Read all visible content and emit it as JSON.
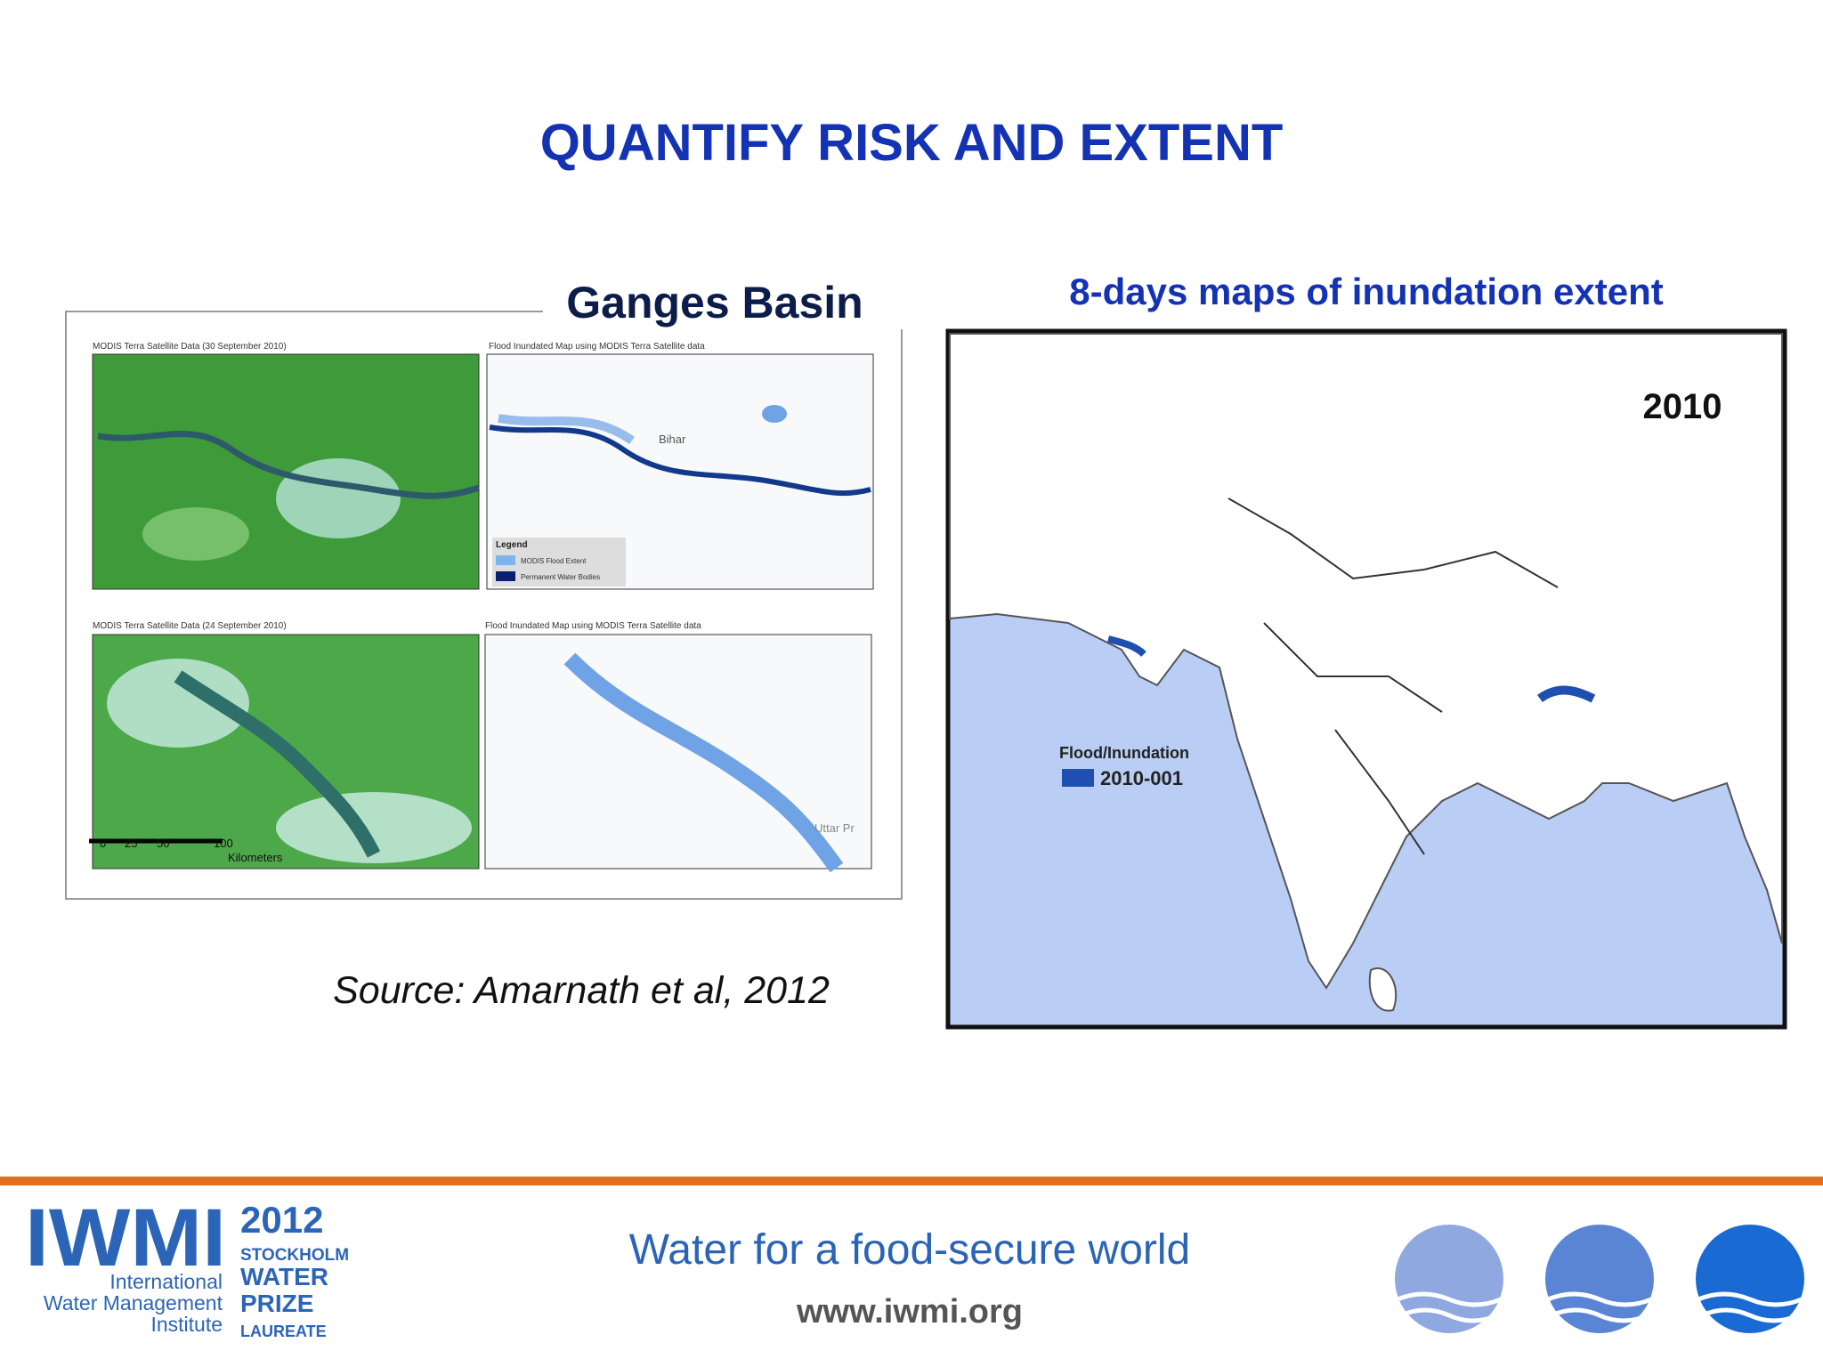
{
  "header": {
    "title": "QUANTIFY RISK AND EXTENT"
  },
  "left_figure": {
    "heading": "Ganges Basin",
    "panels": [
      {
        "caption": "MODIS Terra Satellite Data (30 September 2010)"
      },
      {
        "caption": "Flood Inundated Map using MODIS Terra Satellite data"
      },
      {
        "caption": "MODIS Terra Satellite Data (24 September 2010)"
      },
      {
        "caption": "Flood Inundated Map using MODIS Terra Satellite data"
      }
    ],
    "legend": {
      "title": "Legend",
      "items": [
        "MODIS Flood Extent",
        "Permanent Water Bodies"
      ]
    },
    "scale": {
      "ticks": [
        "0",
        "25",
        "50",
        "100"
      ],
      "unit": "Kilometers"
    },
    "places": [
      "Bihar",
      "Uttar Pr"
    ],
    "source": "Source: Amarnath et al, 2012"
  },
  "right_figure": {
    "heading": "8-days maps of inundation extent",
    "year": "2010",
    "legend": {
      "title": "Flood/Inundation",
      "item": "2010-001"
    }
  },
  "footer": {
    "logo": {
      "name": "IWMI",
      "line1": "International",
      "line2": "Water Management",
      "line3": "Institute"
    },
    "prize": {
      "year": "2012",
      "line1": "STOCKHOLM",
      "line2": "WATER",
      "line3": "PRIZE",
      "line4": "LAUREATE"
    },
    "tagline": "Water for a food-secure world",
    "url": "www.iwmi.org"
  }
}
